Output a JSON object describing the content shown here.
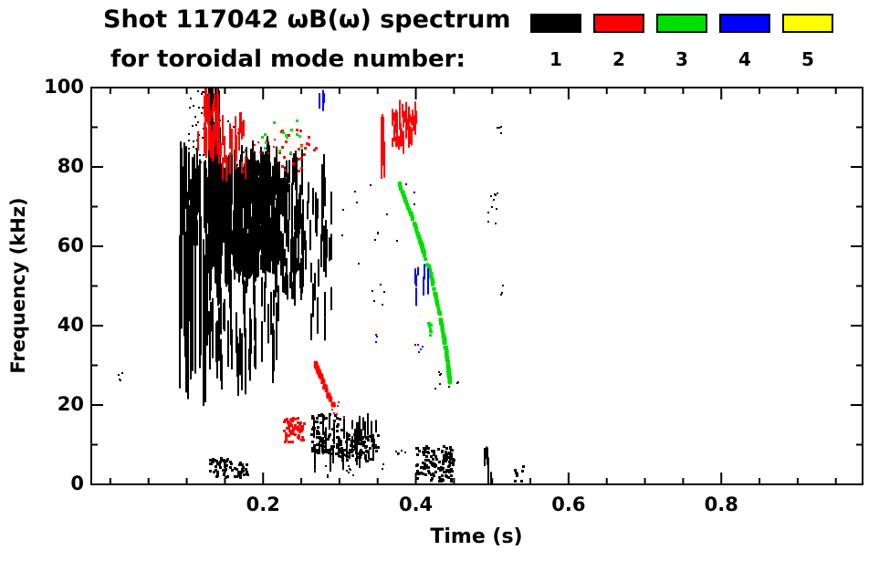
{
  "chart_data": {
    "type": "scatter",
    "title": "Shot 117042 ωB(ω) spectrum",
    "subtitle": "for toroidal mode number:",
    "xlabel": "Time (s)",
    "ylabel": "Frequency (kHz)",
    "xlim": [
      -0.025,
      0.985
    ],
    "ylim": [
      0,
      100
    ],
    "xticks": [
      0.2,
      0.4,
      0.6,
      0.8
    ],
    "xtick_labels": [
      "0.2",
      "0.4",
      "0.6",
      "0.8"
    ],
    "yticks": [
      0,
      20,
      40,
      60,
      80,
      100
    ],
    "ytick_labels": [
      "0",
      "20",
      "40",
      "60",
      "80",
      "100"
    ],
    "x_minor_step": 0.05,
    "y_minor_step": 10,
    "grid": false,
    "legend_position": "top-right",
    "legend": [
      {
        "label": "1",
        "color": "#000000"
      },
      {
        "label": "2",
        "color": "#ff0000"
      },
      {
        "label": "3",
        "color": "#00dd00"
      },
      {
        "label": "4",
        "color": "#0000ff"
      },
      {
        "label": "5",
        "color": "#ffff00"
      }
    ],
    "series": [
      {
        "name": "1",
        "color": "#000000",
        "clusters": [
          {
            "kind": "dots",
            "t": [
              0.008,
              0.015
            ],
            "f": [
              26,
              29
            ],
            "n": 4,
            "s": 2
          },
          {
            "kind": "streaks",
            "t": [
              0.089,
              0.126
            ],
            "f": [
              38,
              62
            ],
            "n": 30,
            "len": [
              20,
              46
            ],
            "w": 2
          },
          {
            "kind": "streaks",
            "t": [
              0.089,
              0.126
            ],
            "f": [
              60,
              78
            ],
            "n": 40,
            "len": [
              6,
              18
            ],
            "w": 2
          },
          {
            "kind": "streaks",
            "t": [
              0.124,
              0.22
            ],
            "f": [
              55,
              80
            ],
            "n": 380,
            "len": [
              3,
              16
            ],
            "w": 2
          },
          {
            "kind": "streaks",
            "t": [
              0.126,
              0.22
            ],
            "f": [
              28,
              54
            ],
            "n": 55,
            "len": [
              4,
              16
            ],
            "w": 2
          },
          {
            "kind": "streaks",
            "t": [
              0.128,
              0.143
            ],
            "f": [
              60,
              100
            ],
            "n": 55,
            "len": [
              8,
              30
            ],
            "w": 2
          },
          {
            "kind": "dots",
            "t": [
              0.098,
              0.145
            ],
            "f": [
              80,
              100
            ],
            "n": 45,
            "s": 2
          },
          {
            "kind": "dots",
            "t": [
              0.145,
              0.178
            ],
            "f": [
              80,
              93
            ],
            "n": 12,
            "s": 2
          },
          {
            "kind": "streaks",
            "t": [
              0.22,
              0.252
            ],
            "f": [
              48,
              80
            ],
            "n": 80,
            "len": [
              3,
              12
            ],
            "w": 2
          },
          {
            "kind": "streaks",
            "t": [
              0.252,
              0.292
            ],
            "f": [
              38,
              78
            ],
            "n": 28,
            "len": [
              3,
              10
            ],
            "w": 2
          },
          {
            "kind": "streaks",
            "t": [
              0.276,
              0.282
            ],
            "f": [
              58,
              78
            ],
            "n": 12,
            "len": [
              5,
              12
            ],
            "w": 2
          },
          {
            "kind": "dots",
            "t": [
              0.286,
              0.4
            ],
            "f": [
              55,
              76
            ],
            "n": 14,
            "s": 2
          },
          {
            "kind": "dots",
            "t": [
              0.34,
              0.36
            ],
            "f": [
              44,
              52
            ],
            "n": 5,
            "s": 2
          },
          {
            "kind": "dots",
            "t": [
              0.128,
              0.158
            ],
            "f": [
              2,
              7
            ],
            "n": 45,
            "s": 3
          },
          {
            "kind": "dots",
            "t": [
              0.16,
              0.178
            ],
            "f": [
              2,
              6
            ],
            "n": 22,
            "s": 3
          },
          {
            "kind": "dots",
            "t": [
              0.262,
              0.302
            ],
            "f": [
              8,
              18
            ],
            "n": 90,
            "s": 3
          },
          {
            "kind": "streaks",
            "t": [
              0.262,
              0.35
            ],
            "f": [
              6,
              16
            ],
            "n": 40,
            "len": [
              2,
              6
            ],
            "w": 2
          },
          {
            "kind": "dots",
            "t": [
              0.3,
              0.35
            ],
            "f": [
              6,
              13
            ],
            "n": 85,
            "s": 3
          },
          {
            "kind": "dots",
            "t": [
              0.26,
              0.33
            ],
            "f": [
              2,
              5
            ],
            "n": 10,
            "s": 2
          },
          {
            "kind": "dots",
            "t": [
              0.355,
              0.395
            ],
            "f": [
              4,
              9
            ],
            "n": 8,
            "s": 2
          },
          {
            "kind": "dots",
            "t": [
              0.399,
              0.449
            ],
            "f": [
              1,
              10
            ],
            "n": 140,
            "s": 3
          },
          {
            "kind": "dots",
            "t": [
              0.423,
              0.455
            ],
            "f": [
              24,
              30
            ],
            "n": 8,
            "s": 2
          },
          {
            "kind": "dots",
            "t": [
              0.488,
              0.508
            ],
            "f": [
              64,
              74
            ],
            "n": 10,
            "s": 2
          },
          {
            "kind": "dots",
            "t": [
              0.503,
              0.512
            ],
            "f": [
              87,
              91
            ],
            "n": 4,
            "s": 2
          },
          {
            "kind": "dots",
            "t": [
              0.505,
              0.515
            ],
            "f": [
              48,
              52
            ],
            "n": 3,
            "s": 2
          },
          {
            "kind": "streaks",
            "t": [
              0.486,
              0.498
            ],
            "f": [
              0,
              8
            ],
            "n": 7,
            "len": [
              3,
              6
            ],
            "w": 2
          },
          {
            "kind": "dots",
            "t": [
              0.528,
              0.54
            ],
            "f": [
              1,
              5
            ],
            "n": 8,
            "s": 3
          }
        ]
      },
      {
        "name": "2",
        "color": "#ff0000",
        "clusters": [
          {
            "kind": "streaks",
            "t": [
              0.112,
              0.142
            ],
            "f": [
              85,
              97
            ],
            "n": 30,
            "len": [
              3,
              9
            ],
            "w": 2
          },
          {
            "kind": "streaks",
            "t": [
              0.138,
              0.178
            ],
            "f": [
              79,
              92
            ],
            "n": 30,
            "len": [
              3,
              8
            ],
            "w": 2
          },
          {
            "kind": "dots",
            "t": [
              0.18,
              0.215
            ],
            "f": [
              82,
              88
            ],
            "n": 8,
            "s": 2
          },
          {
            "kind": "dots",
            "t": [
              0.214,
              0.268
            ],
            "f": [
              79,
              90
            ],
            "n": 26,
            "s": 3
          },
          {
            "kind": "streaks",
            "t": [
              0.353,
              0.358
            ],
            "f": [
              78,
              90
            ],
            "n": 10,
            "len": [
              4,
              10
            ],
            "w": 2
          },
          {
            "kind": "streaks",
            "t": [
              0.368,
              0.402
            ],
            "f": [
              86,
              95
            ],
            "n": 40,
            "len": [
              2,
              6
            ],
            "w": 2
          },
          {
            "kind": "track",
            "pts": [
              [
                0.268,
                31
              ],
              [
                0.276,
                27
              ],
              [
                0.284,
                23
              ],
              [
                0.292,
                20
              ]
            ],
            "w": 4,
            "jitter": 1.2,
            "n": 50
          },
          {
            "kind": "dots",
            "t": [
              0.285,
              0.305
            ],
            "f": [
              17,
              21
            ],
            "n": 8,
            "s": 2
          },
          {
            "kind": "dots",
            "t": [
              0.226,
              0.252
            ],
            "f": [
              11,
              17
            ],
            "n": 65,
            "s": 3
          }
        ]
      },
      {
        "name": "3",
        "color": "#00dd00",
        "clusters": [
          {
            "kind": "dots",
            "t": [
              0.196,
              0.252
            ],
            "f": [
              82,
              92
            ],
            "n": 15,
            "s": 3
          },
          {
            "kind": "track",
            "pts": [
              [
                0.378,
                76
              ],
              [
                0.388,
                71
              ],
              [
                0.398,
                66
              ],
              [
                0.408,
                60
              ],
              [
                0.418,
                54
              ],
              [
                0.428,
                46
              ],
              [
                0.436,
                38
              ],
              [
                0.442,
                31
              ],
              [
                0.445,
                25
              ]
            ],
            "w": 4,
            "jitter": 0.7,
            "n": 220
          },
          {
            "kind": "dots",
            "t": [
              0.414,
              0.423
            ],
            "f": [
              37,
              41
            ],
            "n": 8,
            "s": 3
          }
        ]
      },
      {
        "name": "4",
        "color": "#0000ff",
        "clusters": [
          {
            "kind": "streaks",
            "t": [
              0.272,
              0.28
            ],
            "f": [
              95,
              100
            ],
            "n": 5,
            "len": [
              2,
              4
            ],
            "w": 2
          },
          {
            "kind": "dots",
            "t": [
              0.346,
              0.353
            ],
            "f": [
              35,
              38
            ],
            "n": 4,
            "s": 2
          },
          {
            "kind": "streaks",
            "t": [
              0.398,
              0.417
            ],
            "f": [
              47,
              55
            ],
            "n": 8,
            "len": [
              2,
              5
            ],
            "w": 2
          },
          {
            "kind": "dots",
            "t": [
              0.398,
              0.41
            ],
            "f": [
              32,
              37
            ],
            "n": 6,
            "s": 2
          }
        ]
      },
      {
        "name": "5",
        "color": "#ffff00",
        "clusters": []
      }
    ]
  }
}
